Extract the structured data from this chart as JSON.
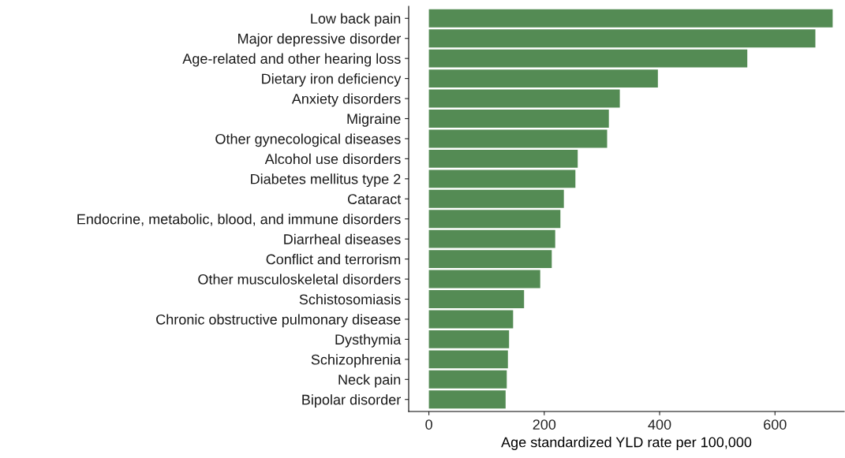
{
  "chart_data": {
    "type": "bar",
    "orientation": "horizontal",
    "xlabel": "Age standardized YLD rate per 100,000",
    "categories": [
      "Low back pain",
      "Major depressive disorder",
      "Age-related and other hearing loss",
      "Dietary iron deficiency",
      "Anxiety disorders",
      "Migraine",
      "Other gynecological diseases",
      "Alcohol use disorders",
      "Diabetes mellitus type 2",
      "Cataract",
      "Endocrine, metabolic, blood, and immune disorders",
      "Diarrheal diseases",
      "Conflict and terrorism",
      "Other musculoskeletal disorders",
      "Schistosomiasis",
      "Chronic obstructive pulmonary disease",
      "Dysthymia",
      "Schizophrenia",
      "Neck pain",
      "Bipolar disorder"
    ],
    "values": [
      700,
      670,
      552,
      397,
      331,
      312,
      309,
      258,
      254,
      234,
      228,
      219,
      213,
      193,
      165,
      146,
      139,
      137,
      135,
      133
    ],
    "color": "#548b54",
    "xlim": [
      -35,
      720
    ],
    "xticks": [
      0,
      200,
      400,
      600
    ],
    "grid": false
  }
}
